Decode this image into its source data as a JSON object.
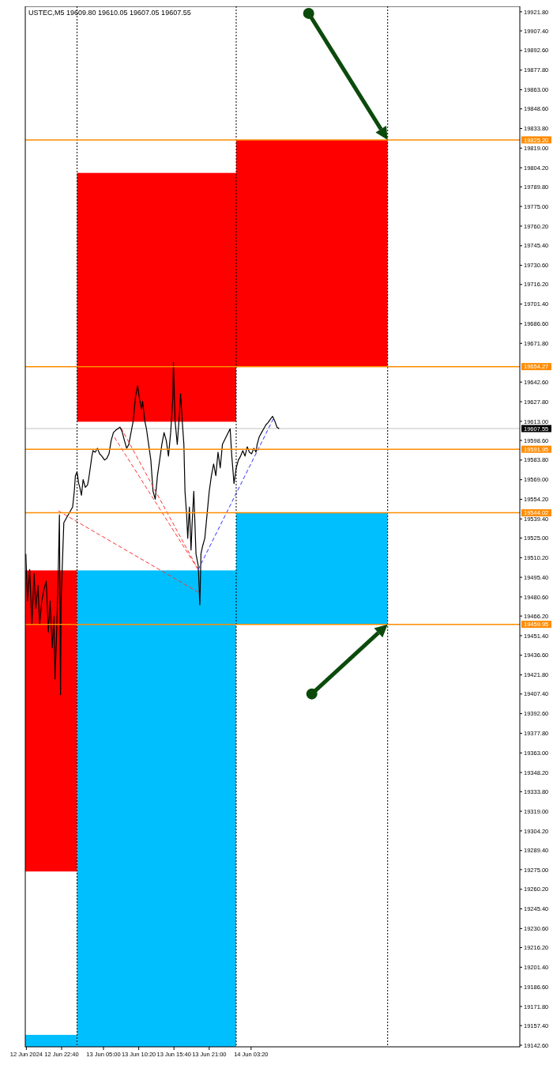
{
  "chart_data": {
    "type": "line",
    "title": "USTEC,M5 19609.80 19610.05 19607.05 19607.55",
    "grid": false,
    "xlim": [
      "2024-06-12T17:10",
      "2024-06-15T20:00"
    ],
    "ylim": [
      19141.4,
      19925.9
    ],
    "xticks": [
      {
        "value": "2024-06-12T17:20",
        "label": "12 Jun 2024"
      },
      {
        "value": "2024-06-12T22:40",
        "label": "12 Jun 22:40"
      },
      {
        "value": "2024-06-13T05:00",
        "label": "13 Jun 05:00"
      },
      {
        "value": "2024-06-13T10:20",
        "label": "13 Jun 10:20"
      },
      {
        "value": "2024-06-13T15:40",
        "label": "13 Jun 15:40"
      },
      {
        "value": "2024-06-13T21:00",
        "label": "13 Jun 21:00"
      },
      {
        "value": "2024-06-14T03:20",
        "label": "14 Jun 03:20"
      }
    ],
    "yticks": [
      {
        "value": 19921.8,
        "label": "19921.80"
      },
      {
        "value": 19907.4,
        "label": "19907.40"
      },
      {
        "value": 19892.6,
        "label": "19892.60"
      },
      {
        "value": 19877.8,
        "label": "19877.80"
      },
      {
        "value": 19863,
        "label": "19863.00"
      },
      {
        "value": 19848.6,
        "label": "19848.60"
      },
      {
        "value": 19833.8,
        "label": "19833.80"
      },
      {
        "value": 19819,
        "label": "19819.00"
      },
      {
        "value": 19804.2,
        "label": "19804.20"
      },
      {
        "value": 19789.8,
        "label": "19789.80"
      },
      {
        "value": 19775,
        "label": "19775.00"
      },
      {
        "value": 19760.2,
        "label": "19760.20"
      },
      {
        "value": 19745.4,
        "label": "19745.40"
      },
      {
        "value": 19730.6,
        "label": "19730.60"
      },
      {
        "value": 19716.2,
        "label": "19716.20"
      },
      {
        "value": 19701.4,
        "label": "19701.40"
      },
      {
        "value": 19686.6,
        "label": "19686.60"
      },
      {
        "value": 19671.8,
        "label": "19671.80"
      },
      {
        "value": 19642.6,
        "label": "19642.60"
      },
      {
        "value": 19627.8,
        "label": "19627.80"
      },
      {
        "value": 19613,
        "label": "19613.00"
      },
      {
        "value": 19598.6,
        "label": "19598.60"
      },
      {
        "value": 19583.8,
        "label": "19583.80"
      },
      {
        "value": 19569,
        "label": "19569.00"
      },
      {
        "value": 19554.2,
        "label": "19554.20"
      },
      {
        "value": 19539.4,
        "label": "19539.40"
      },
      {
        "value": 19525,
        "label": "19525.00"
      },
      {
        "value": 19510.2,
        "label": "19510.20"
      },
      {
        "value": 19495.4,
        "label": "19495.40"
      },
      {
        "value": 19480.6,
        "label": "19480.60"
      },
      {
        "value": 19466.2,
        "label": "19466.20"
      },
      {
        "value": 19451.4,
        "label": "19451.40"
      },
      {
        "value": 19436.6,
        "label": "19436.60"
      },
      {
        "value": 19421.8,
        "label": "19421.80"
      },
      {
        "value": 19407.4,
        "label": "19407.40"
      },
      {
        "value": 19392.6,
        "label": "19392.60"
      },
      {
        "value": 19377.8,
        "label": "19377.80"
      },
      {
        "value": 19363,
        "label": "19363.00"
      },
      {
        "value": 19348.2,
        "label": "19348.20"
      },
      {
        "value": 19333.8,
        "label": "19333.80"
      },
      {
        "value": 19319,
        "label": "19319.00"
      },
      {
        "value": 19304.2,
        "label": "19304.20"
      },
      {
        "value": 19289.4,
        "label": "19289.40"
      },
      {
        "value": 19275,
        "label": "19275.00"
      },
      {
        "value": 19260.2,
        "label": "19260.20"
      },
      {
        "value": 19245.4,
        "label": "19245.40"
      },
      {
        "value": 19230.6,
        "label": "19230.60"
      },
      {
        "value": 19216.2,
        "label": "19216.20"
      },
      {
        "value": 19201.4,
        "label": "19201.40"
      },
      {
        "value": 19186.6,
        "label": "19186.60"
      },
      {
        "value": 19171.8,
        "label": "19171.80"
      },
      {
        "value": 19157.4,
        "label": "19157.40"
      },
      {
        "value": 19142.6,
        "label": "19142.60"
      }
    ],
    "ref_lines": [
      {
        "axis": "y",
        "value": 19825.2,
        "label": "19825.20",
        "color": "#ff8c00"
      },
      {
        "axis": "y",
        "value": 19654.27,
        "label": "19654.27",
        "color": "#ff8c00"
      },
      {
        "axis": "y",
        "value": 19607.55,
        "label": "19607.55",
        "color": "#000000"
      },
      {
        "axis": "y",
        "value": 19591.95,
        "label": "19591.95",
        "color": "#ff8c00"
      },
      {
        "axis": "y",
        "value": 19544.02,
        "label": "19544.02",
        "color": "#ff8c00"
      },
      {
        "axis": "y",
        "value": 19459.95,
        "label": "19459.95",
        "color": "#ff8c00"
      },
      {
        "axis": "x",
        "value": "2024-06-13T01:00",
        "color": "#000000",
        "line_style": "dotted"
      },
      {
        "axis": "x",
        "value": "2024-06-14T01:05",
        "color": "#000000",
        "line_style": "dotted"
      },
      {
        "axis": "x",
        "value": "2024-06-15T00:00",
        "color": "#000000",
        "line_style": "dotted"
      }
    ],
    "series": [
      {
        "type": "bar",
        "color": "#ff0000",
        "x": [
          "2024-06-12T21:00",
          "2024-06-13T13:00",
          "2024-06-14T12:00"
        ],
        "base": [
          19273.6,
          19612.7,
          19654.27
        ],
        "values": [
          227.0,
          187.6,
          170.9
        ]
      },
      {
        "type": "bar",
        "color": "#00bfff",
        "x": [
          "2024-06-12T21:00",
          "2024-06-13T13:00",
          "2024-06-14T12:00"
        ],
        "base": [
          19141.4,
          19141.4,
          19459.95
        ],
        "values": [
          9.0,
          359.2,
          84.1
        ]
      },
      {
        "color": "#000000",
        "line_style": "solid",
        "x": [
          "2024-06-12T17:15",
          "2024-06-12T17:30",
          "2024-06-12T17:50",
          "2024-06-12T18:10",
          "2024-06-12T18:30",
          "2024-06-12T18:45",
          "2024-06-12T19:05",
          "2024-06-12T19:20",
          "2024-06-12T19:40",
          "2024-06-12T20:00",
          "2024-06-12T20:20",
          "2024-06-12T20:40",
          "2024-06-12T20:55",
          "2024-06-12T21:15",
          "2024-06-12T21:30",
          "2024-06-12T21:40",
          "2024-06-12T21:55",
          "2024-06-12T22:10",
          "2024-06-12T22:20",
          "2024-06-12T22:30",
          "2024-06-12T22:35",
          "2024-06-12T22:50",
          "2024-06-12T23:00",
          "2024-06-13T00:20",
          "2024-06-13T00:35",
          "2024-06-13T00:45",
          "2024-06-13T01:00",
          "2024-06-13T01:15",
          "2024-06-13T01:25",
          "2024-06-13T01:40",
          "2024-06-13T01:55",
          "2024-06-13T02:15",
          "2024-06-13T02:35",
          "2024-06-13T02:45",
          "2024-06-13T03:00",
          "2024-06-13T03:15",
          "2024-06-13T03:25",
          "2024-06-13T03:45",
          "2024-06-13T04:05",
          "2024-06-13T04:25",
          "2024-06-13T04:45",
          "2024-06-13T05:10",
          "2024-06-13T05:30",
          "2024-06-13T05:50",
          "2024-06-13T06:10",
          "2024-06-13T06:30",
          "2024-06-13T06:50",
          "2024-06-13T07:10",
          "2024-06-13T07:30",
          "2024-06-13T07:50",
          "2024-06-13T08:10",
          "2024-06-13T08:30",
          "2024-06-13T08:50",
          "2024-06-13T09:10",
          "2024-06-13T09:30",
          "2024-06-13T09:50",
          "2024-06-13T10:10",
          "2024-06-13T10:25",
          "2024-06-13T10:45",
          "2024-06-13T10:55",
          "2024-06-13T11:15",
          "2024-06-13T11:30",
          "2024-06-13T11:50",
          "2024-06-13T12:10",
          "2024-06-13T12:30",
          "2024-06-13T12:50",
          "2024-06-13T13:10",
          "2024-06-13T13:30",
          "2024-06-13T13:50",
          "2024-06-13T14:10",
          "2024-06-13T14:30",
          "2024-06-13T14:50",
          "2024-06-13T15:10",
          "2024-06-13T15:30",
          "2024-06-13T15:35",
          "2024-06-13T15:50",
          "2024-06-13T16:10",
          "2024-06-13T16:30",
          "2024-06-13T16:40",
          "2024-06-13T16:55",
          "2024-06-13T17:10",
          "2024-06-13T17:20",
          "2024-06-13T17:35",
          "2024-06-13T17:45",
          "2024-06-13T18:00",
          "2024-06-13T18:15",
          "2024-06-13T18:25",
          "2024-06-13T18:40",
          "2024-06-13T19:00",
          "2024-06-13T19:20",
          "2024-06-13T19:35",
          "2024-06-13T19:45",
          "2024-06-13T20:00",
          "2024-06-13T20:20",
          "2024-06-13T20:40",
          "2024-06-13T21:00",
          "2024-06-13T21:20",
          "2024-06-13T21:40",
          "2024-06-13T22:00",
          "2024-06-13T22:20",
          "2024-06-13T22:40",
          "2024-06-13T23:00",
          "2024-06-14T00:10",
          "2024-06-14T00:25",
          "2024-06-14T00:45",
          "2024-06-14T01:05",
          "2024-06-14T01:25",
          "2024-06-14T01:45",
          "2024-06-14T02:05",
          "2024-06-14T02:25",
          "2024-06-14T02:45",
          "2024-06-14T03:05",
          "2024-06-14T03:25",
          "2024-06-14T03:45",
          "2024-06-14T04:05",
          "2024-06-14T04:15",
          "2024-06-14T04:35",
          "2024-06-14T04:55",
          "2024-06-14T05:15",
          "2024-06-14T05:35",
          "2024-06-14T05:55",
          "2024-06-14T06:15",
          "2024-06-14T06:35",
          "2024-06-14T06:55",
          "2024-06-14T07:15",
          "2024-06-14T07:35"
        ],
        "values": [
          19513.0,
          19477.6,
          19501.2,
          19459.9,
          19498.3,
          19471.8,
          19489.4,
          19459.9,
          19477.6,
          19486.5,
          19492.4,
          19454.1,
          19477.6,
          19442.3,
          19465.9,
          19418.7,
          19454.1,
          19501.2,
          19542.5,
          19406.9,
          19477.6,
          19513.0,
          19536.6,
          19548.4,
          19560.2,
          19572.0,
          19575.0,
          19566.1,
          19563.2,
          19557.3,
          19569.1,
          19563.2,
          19565.0,
          19569.1,
          19577.9,
          19586.8,
          19590.9,
          19589.7,
          19592.7,
          19588.5,
          19586.8,
          19583.8,
          19585.0,
          19588.5,
          19598.6,
          19604.5,
          19606.2,
          19607.4,
          19608.6,
          19605.0,
          19598.6,
          19592.7,
          19595.6,
          19604.5,
          19613.3,
          19631.0,
          19639.8,
          19631.0,
          19622.2,
          19628.1,
          19613.3,
          19607.4,
          19595.6,
          19583.8,
          19560.2,
          19554.3,
          19572.0,
          19583.8,
          19595.6,
          19604.5,
          19598.6,
          19586.8,
          19604.5,
          19631.0,
          19657.5,
          19613.3,
          19595.6,
          19619.2,
          19633.9,
          19613.3,
          19595.6,
          19560.2,
          19542.5,
          19524.8,
          19548.4,
          19516.0,
          19536.6,
          19560.2,
          19513.0,
          19504.2,
          19474.7,
          19513.0,
          19518.9,
          19524.8,
          19542.5,
          19560.2,
          19572.0,
          19580.9,
          19572.0,
          19589.7,
          19577.9,
          19595.6,
          19607.4,
          19586.8,
          19566.1,
          19577.9,
          19583.8,
          19586.8,
          19590.9,
          19586.8,
          19593.8,
          19589.7,
          19588.5,
          19592.7,
          19589.7,
          19595.6,
          19601.5,
          19604.5,
          19607.4,
          19610.4,
          19612.1,
          19614.5,
          19616.8,
          19613.3,
          19608.6,
          19607.4
        ]
      },
      {
        "color": "#ff3030",
        "line_style": "dashed",
        "x": [
          "2024-06-12T22:10",
          "2024-06-13T19:35"
        ],
        "values": [
          19545.5,
          19483.5
        ]
      },
      {
        "color": "#ff3030",
        "line_style": "dashed",
        "x": [
          "2024-06-13T06:40",
          "2024-06-13T19:20"
        ],
        "values": [
          19600.9,
          19501.2
        ]
      },
      {
        "color": "#ff3030",
        "line_style": "dashed",
        "x": [
          "2024-06-13T07:40",
          "2024-06-13T19:20"
        ],
        "values": [
          19608.0,
          19501.2
        ]
      },
      {
        "color": "#3030ff",
        "line_style": "dashed",
        "x": [
          "2024-06-13T19:20",
          "2024-06-14T06:50"
        ],
        "values": [
          19501.2,
          19616.2
        ]
      }
    ]
  }
}
